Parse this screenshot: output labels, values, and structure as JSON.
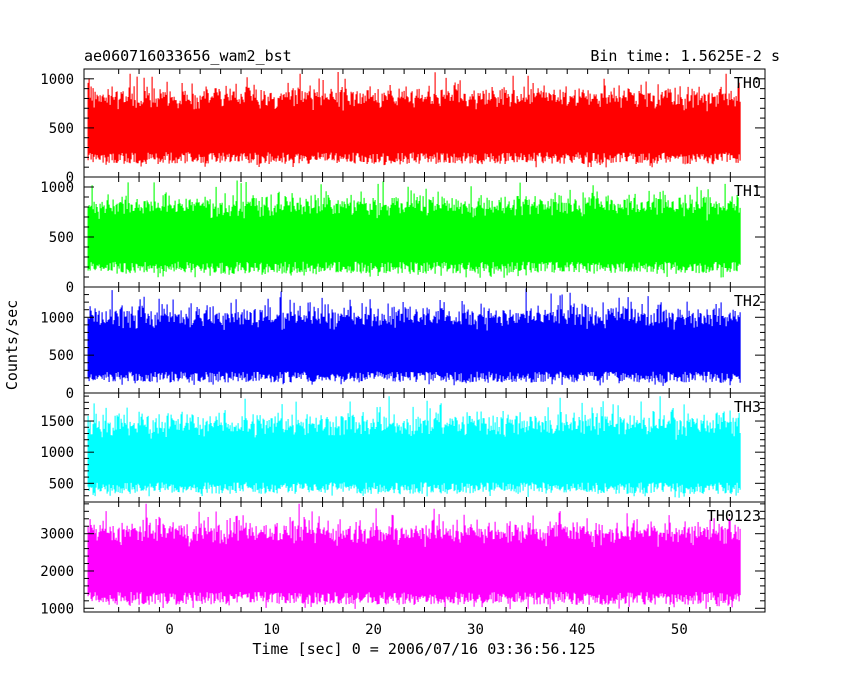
{
  "header": {
    "title": "ae060716033656_wam2_bst",
    "bin_time": "Bin time: 1.5625E-2 s"
  },
  "chart_data": {
    "type": "line",
    "xlabel": "Time [sec] 0 = 2006/07/16 03:36:56.125",
    "ylabel": "Counts/sec",
    "xlim": [
      -8.4,
      58.4
    ],
    "data_x_range": [
      -8,
      56
    ],
    "x_ticks": [
      0,
      10,
      20,
      30,
      40,
      50
    ],
    "x_tick_labels": [
      "0",
      "10",
      "20",
      "30",
      "40",
      "50"
    ],
    "grid": false,
    "panels": [
      {
        "label": "TH0",
        "color": "#ff0000",
        "ylim": [
          0,
          1100
        ],
        "y_ticks": [
          0,
          500,
          1000
        ],
        "y_tick_labels": [
          "0",
          "500",
          "1000"
        ],
        "mean": 500,
        "min": 100,
        "max": 1100
      },
      {
        "label": "TH1",
        "color": "#00ff00",
        "ylim": [
          0,
          1100
        ],
        "y_ticks": [
          0,
          500,
          1000
        ],
        "y_tick_labels": [
          "0",
          "500",
          "1000"
        ],
        "mean": 500,
        "min": 100,
        "max": 1100
      },
      {
        "label": "TH2",
        "color": "#0000ff",
        "ylim": [
          0,
          1400
        ],
        "y_ticks": [
          0,
          500,
          1000
        ],
        "y_tick_labels": [
          "0",
          "500",
          "1000"
        ],
        "mean": 580,
        "min": 100,
        "max": 1400
      },
      {
        "label": "TH3",
        "color": "#00ffff",
        "ylim": [
          200,
          1950
        ],
        "y_ticks": [
          500,
          1000,
          1500
        ],
        "y_tick_labels": [
          "500",
          "1000",
          "1500"
        ],
        "mean": 900,
        "min": 280,
        "max": 1950
      },
      {
        "label": "TH0123",
        "color": "#ff00ff",
        "ylim": [
          900,
          3850
        ],
        "y_ticks": [
          1000,
          2000,
          3000
        ],
        "y_tick_labels": [
          "1000",
          "2000",
          "3000"
        ],
        "mean": 2150,
        "min": 1000,
        "max": 3850
      }
    ]
  }
}
